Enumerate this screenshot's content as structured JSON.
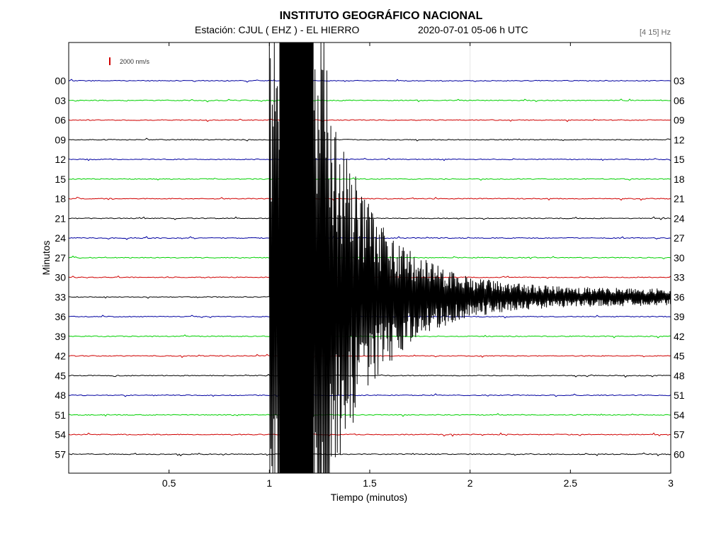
{
  "chart_data": {
    "type": "line",
    "title": "INSTITUTO GEOGRÁFICO NACIONAL",
    "station_line": "Estación:  CJUL ( EHZ ) - EL HIERRO",
    "date_line": "2020-07-01  05-06 h UTC",
    "filter": "[4 15] Hz",
    "scale_label": "2000 nm/s",
    "xlabel": "Tiempo (minutos)",
    "ylabel": "Minutos",
    "xlim": [
      0,
      3
    ],
    "x_ticks": [
      "0.5",
      "1",
      "1.5",
      "2",
      "2.5",
      "3"
    ],
    "x_tick_values": [
      0.5,
      1,
      1.5,
      2,
      2.5,
      3
    ],
    "traces_left": [
      "00",
      "03",
      "06",
      "09",
      "12",
      "15",
      "18",
      "21",
      "24",
      "27",
      "30",
      "33",
      "36",
      "39",
      "42",
      "45",
      "48",
      "51",
      "54",
      "57"
    ],
    "traces_right": [
      "03",
      "06",
      "09",
      "12",
      "15",
      "18",
      "21",
      "24",
      "27",
      "30",
      "33",
      "36",
      "39",
      "42",
      "45",
      "48",
      "51",
      "54",
      "57",
      "60"
    ],
    "trace_colors": [
      "#0000a0",
      "#00d000",
      "#d00000",
      "#000000"
    ],
    "event": {
      "trace_start": "33",
      "onset_minutes": 1.0,
      "peak_end_minutes": 1.3,
      "coda_end_minutes": 3.0
    },
    "scale_color": "#d00000"
  }
}
